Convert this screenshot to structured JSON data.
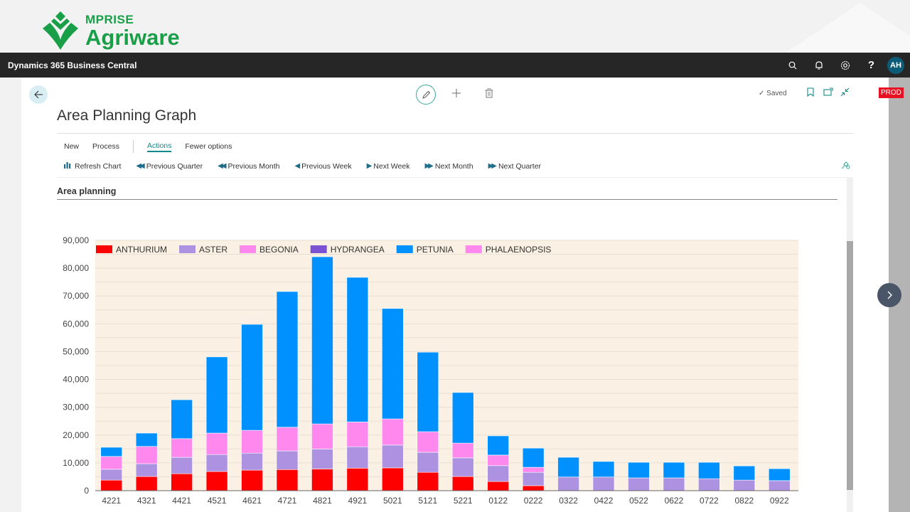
{
  "brand": {
    "small": "MPRISE",
    "big": "Agriware"
  },
  "nav": {
    "title": "Dynamics 365 Business Central",
    "avatar": "AH",
    "icons": [
      "search-icon",
      "bell-icon",
      "gear-icon",
      "help-icon"
    ]
  },
  "env_badge": "PROD",
  "page": {
    "title": "Area Planning Graph",
    "saved": "Saved",
    "menu": [
      "New",
      "Process",
      "Actions",
      "Fewer options"
    ],
    "active_menu": "Actions",
    "actions": [
      {
        "label": "Refresh Chart",
        "icon": "chart-icon"
      },
      {
        "label": "Previous Quarter",
        "icon": "double-left-icon"
      },
      {
        "label": "Previous Month",
        "icon": "double-left-icon"
      },
      {
        "label": "Previous Week",
        "icon": "left-icon"
      },
      {
        "label": "Next Week",
        "icon": "right-icon"
      },
      {
        "label": "Next Month",
        "icon": "double-right-icon"
      },
      {
        "label": "Next Quarter",
        "icon": "double-right-icon"
      }
    ],
    "part_title": "Area planning"
  },
  "chart_data": {
    "type": "bar",
    "stacked": true,
    "title": "",
    "xlabel": "",
    "ylabel": "",
    "ylim": [
      0,
      90000
    ],
    "yticks": [
      "0",
      "10,000",
      "20,000",
      "30,000",
      "40,000",
      "50,000",
      "60,000",
      "70,000",
      "80,000",
      "90,000"
    ],
    "ytick_values": [
      0,
      10000,
      20000,
      30000,
      40000,
      50000,
      60000,
      70000,
      80000,
      90000
    ],
    "grid": true,
    "legend_position": "top",
    "background": "#faf0e3",
    "categories": [
      "4221",
      "4321",
      "4421",
      "4521",
      "4621",
      "4721",
      "4821",
      "4921",
      "5021",
      "5121",
      "5221",
      "0122",
      "0222",
      "0322",
      "0422",
      "0522",
      "0622",
      "0722",
      "0822",
      "0922"
    ],
    "series": [
      {
        "name": "ANTHURIUM",
        "color": "#ff0000",
        "values": [
          3800,
          5100,
          6100,
          6900,
          7400,
          7600,
          7800,
          8100,
          8200,
          6600,
          5100,
          3300,
          1800,
          0,
          0,
          0,
          0,
          0,
          0,
          0
        ]
      },
      {
        "name": "ASTER",
        "color": "#ac92e0",
        "values": [
          3900,
          4600,
          5900,
          6100,
          6100,
          6700,
          7200,
          7700,
          8200,
          7200,
          6700,
          5700,
          4800,
          4900,
          4900,
          4600,
          4600,
          4300,
          3800,
          3600
        ]
      },
      {
        "name": "BEGONIA",
        "color": "#ff88ee",
        "values": [
          4600,
          6200,
          6700,
          7700,
          8200,
          8500,
          9000,
          8900,
          9400,
          7400,
          5300,
          3800,
          1800,
          0,
          0,
          0,
          0,
          0,
          0,
          0
        ]
      },
      {
        "name": "HYDRANGEA",
        "color": "#7b52d4",
        "values": [
          0,
          0,
          0,
          0,
          0,
          0,
          0,
          0,
          0,
          0,
          0,
          0,
          0,
          0,
          0,
          0,
          0,
          0,
          0,
          0
        ]
      },
      {
        "name": "PETUNIA",
        "color": "#0091ff",
        "values": [
          3300,
          4800,
          14000,
          27400,
          38100,
          48800,
          60100,
          52000,
          39700,
          28600,
          18200,
          6900,
          6900,
          7100,
          5600,
          5600,
          5600,
          5900,
          5100,
          4300
        ]
      },
      {
        "name": "PHALAENOPSIS",
        "color": "#ff88ee",
        "values": [
          0,
          0,
          0,
          0,
          0,
          0,
          0,
          0,
          0,
          0,
          0,
          0,
          0,
          0,
          0,
          0,
          0,
          0,
          0,
          0
        ]
      }
    ]
  }
}
